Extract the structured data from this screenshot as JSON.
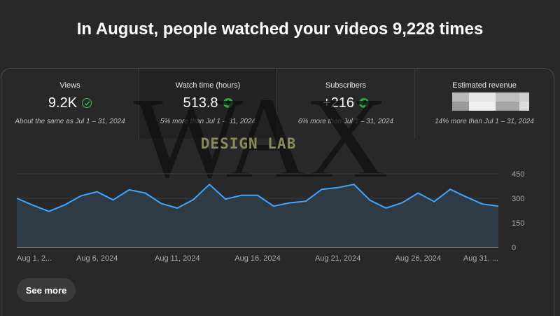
{
  "headline": "In August, people watched your videos 9,228 times",
  "metrics": [
    {
      "label": "Views",
      "value": "9.2K",
      "comparison": "About the same as Jul 1 – 31, 2024",
      "icon": "check-circle-icon"
    },
    {
      "label": "Watch time (hours)",
      "value": "513.8",
      "comparison": "5% more than Jul 1 – 31, 2024",
      "icon": "arrow-up-icon"
    },
    {
      "label": "Subscribers",
      "value": "+216",
      "comparison": "6% more than Jul 1 – 31, 2024",
      "icon": "arrow-up-icon"
    },
    {
      "label": "Estimated revenue",
      "value": "",
      "comparison": "14% more than Jul 1 – 31, 2024",
      "icon": "redacted"
    }
  ],
  "watermark": {
    "letters": "WAX",
    "text": "DESIGN LAB"
  },
  "chart_data": {
    "type": "area",
    "series": [
      {
        "values": [
          300,
          258,
          220,
          260,
          315,
          340,
          290,
          352,
          332,
          268,
          240,
          292,
          385,
          295,
          318,
          318,
          252,
          272,
          282,
          355,
          365,
          385,
          288,
          240,
          272,
          332,
          280,
          355,
          308,
          265,
          252
        ]
      }
    ],
    "x_tick_labels": [
      "Aug 1, 2...",
      "Aug 6, 2024",
      "Aug 11, 2024",
      "Aug 16, 2024",
      "Aug 21, 2024",
      "Aug 26, 2024",
      "Aug 31, ..."
    ],
    "y_tick_labels": [
      "450",
      "300",
      "150",
      "0"
    ],
    "ylim": [
      0,
      450
    ],
    "grid": true,
    "line_color": "#3ea6ff",
    "fill_color": "#2e3a44"
  },
  "see_more_label": "See more"
}
